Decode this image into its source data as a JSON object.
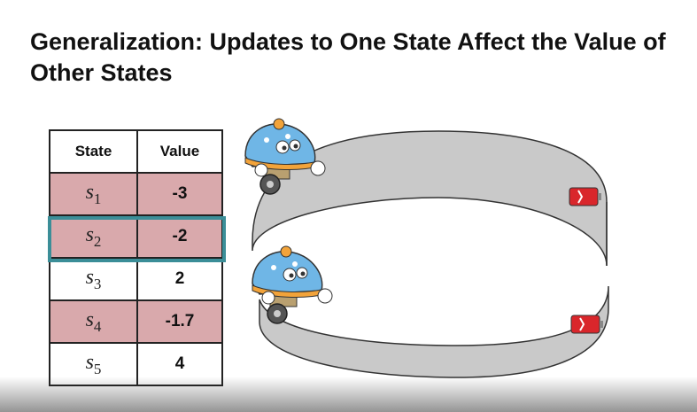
{
  "title": "Generalization: Updates to One State Affect the Value of Other States",
  "table": {
    "headers": [
      "State",
      "Value"
    ],
    "rows": [
      {
        "state": "s",
        "sub": "1",
        "value": "-3",
        "shaded": true
      },
      {
        "state": "s",
        "sub": "2",
        "value": "-2",
        "shaded": true,
        "highlighted": true
      },
      {
        "state": "s",
        "sub": "3",
        "value": "2",
        "shaded": false
      },
      {
        "state": "s",
        "sub": "4",
        "value": "-1.7",
        "shaded": true
      },
      {
        "state": "s",
        "sub": "5",
        "value": "4",
        "shaded": false
      }
    ]
  },
  "colors": {
    "shaded_row": "#d9a9ac",
    "highlight_border": "#3b8e98",
    "track": "#c8c8c8",
    "battery": "#d9262b"
  },
  "icons": [
    "robot-icon",
    "battery-icon"
  ]
}
